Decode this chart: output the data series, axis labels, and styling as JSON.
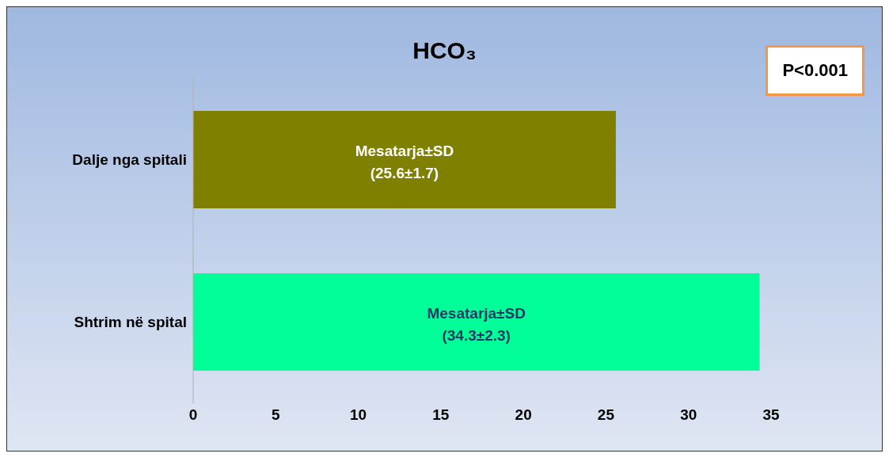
{
  "chart_data": {
    "type": "bar",
    "orientation": "horizontal",
    "title": "HCO₃",
    "categories": [
      "Dalje nga spitali",
      "Shtrim në spital"
    ],
    "values": [
      25.6,
      34.3
    ],
    "colors": [
      "#808000",
      "#00ff99"
    ],
    "value_labels": [
      "Mesatarja±SD\n(25.6±1.7)",
      "Mesatarja±SD\n(34.3±2.3)"
    ],
    "xlim": [
      0,
      35
    ],
    "xticks": [
      0,
      5,
      10,
      15,
      20,
      25,
      30,
      35
    ],
    "annotations": [
      "P<0.001"
    ]
  }
}
